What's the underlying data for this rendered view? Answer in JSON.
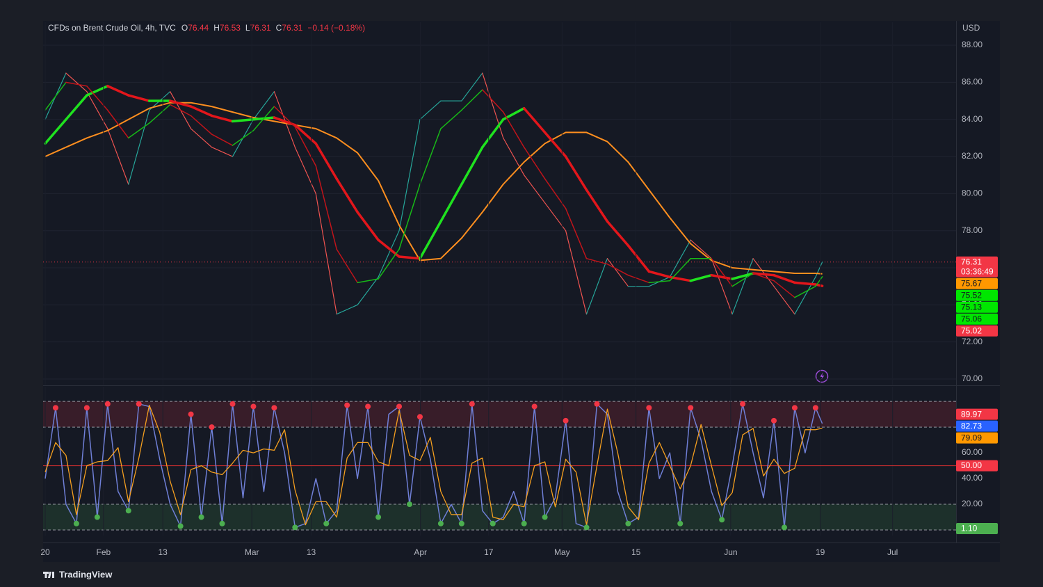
{
  "chart_data": [
    {
      "type": "line",
      "title": "CFDs on Brent Crude Oil, 4h, TVC",
      "ohlc": [
        {
          "label": "O",
          "value": 76.44
        },
        {
          "label": "H",
          "value": 76.53
        },
        {
          "label": "L",
          "value": 76.31
        },
        {
          "label": "C",
          "value": 76.31
        }
      ],
      "change_label": "−0.14 (−0.18%)",
      "header_color": "#f23645",
      "currency": "USD",
      "x": [
        0,
        4,
        8,
        12,
        16,
        20,
        24,
        28,
        32,
        36,
        40,
        44,
        48,
        52,
        56,
        60,
        64,
        68,
        72,
        76,
        80,
        84,
        88,
        92,
        96,
        100,
        104,
        108,
        112,
        116,
        120,
        124,
        128,
        132,
        136,
        140,
        144,
        148,
        149.3
      ],
      "xlim": [
        -0.4,
        175
      ],
      "ylim": [
        69.7,
        89.24
      ],
      "yticks": [
        {
          "value": 70,
          "label": "70.00"
        },
        {
          "value": 72,
          "label": "72.00"
        },
        {
          "value": 74,
          "label": "74.00"
        },
        {
          "value": 76,
          "label": "76.00"
        },
        {
          "value": 78,
          "label": "78.00"
        },
        {
          "value": 80,
          "label": "80.00"
        },
        {
          "value": 82,
          "label": "82.00"
        },
        {
          "value": 84,
          "label": "84.00"
        },
        {
          "value": 86,
          "label": "86.00"
        },
        {
          "value": 88,
          "label": "88.00"
        }
      ],
      "grid": true,
      "series": [
        {
          "up_color": "#26a69a",
          "down_color": "#ef5350",
          "line_width": 1.2,
          "values": [
            84,
            86.5,
            85.5,
            83.5,
            80.5,
            84.5,
            85.5,
            83.5,
            82.5,
            82,
            84,
            85.5,
            82.5,
            80,
            73.5,
            74,
            75.5,
            78,
            84,
            85,
            85,
            86.5,
            83,
            81,
            79.5,
            78,
            73.5,
            76.5,
            75,
            75,
            75.5,
            77.5,
            76.5,
            73.5,
            76.5,
            75,
            73.5,
            75.5,
            76.31
          ]
        },
        {
          "color": "#ff8f1f",
          "line_width": 2,
          "values": [
            82,
            82.5,
            83,
            83.4,
            84,
            84.6,
            84.9,
            84.9,
            84.7,
            84.4,
            84.1,
            83.9,
            83.7,
            83.5,
            83,
            82.2,
            80.7,
            78.3,
            76.4,
            76.5,
            77.6,
            79,
            80.5,
            81.7,
            82.7,
            83.3,
            83.3,
            82.8,
            81.7,
            80.2,
            78.7,
            77.3,
            76.4,
            76,
            75.9,
            75.8,
            75.7,
            75.7,
            75.67
          ]
        },
        {
          "up_color": "#1fe21f",
          "down_color": "#e3161b",
          "line_width": 3.5,
          "values": [
            82.7,
            84,
            85.3,
            85.8,
            85.3,
            85,
            85,
            84.7,
            84.2,
            83.9,
            84,
            84.1,
            83.7,
            82.7,
            80.8,
            79,
            77.5,
            76.6,
            76.5,
            78.5,
            80.5,
            82.5,
            84,
            84.6,
            83.3,
            82,
            80.2,
            78.5,
            77.2,
            75.8,
            75.5,
            75.3,
            75.6,
            75.4,
            75.7,
            75.6,
            75.2,
            75.1,
            75.02
          ]
        },
        {
          "up_color": "#17b817",
          "down_color": "#c0141a",
          "line_width": 1.5,
          "values": [
            84.5,
            86,
            85.8,
            84.5,
            83,
            83.8,
            84.8,
            84.2,
            83.2,
            82.6,
            83.4,
            84.7,
            83.6,
            81.5,
            77,
            75.2,
            75.4,
            77,
            80.5,
            83.5,
            84.5,
            85.6,
            84.4,
            82.5,
            80.8,
            79.2,
            76.5,
            76.2,
            75.6,
            75.2,
            75.3,
            76.5,
            76.5,
            75,
            75.7,
            75.3,
            74.4,
            75,
            75.52
          ]
        }
      ],
      "last_price": 76.31,
      "last_price_color": "#f23645",
      "tags": [
        {
          "value": 76.31,
          "sublabel": "03:36:49",
          "color": "#f23645",
          "text_color": "#ffffff"
        },
        {
          "value": 75.67,
          "color": "#ff9800",
          "text_color": "#131722"
        },
        {
          "value": 75.52,
          "color": "#00e600",
          "text_color": "#131722"
        },
        {
          "value": 75.13,
          "color": "#00e600",
          "text_color": "#131722"
        },
        {
          "value": 75.06,
          "color": "#00e600",
          "text_color": "#131722"
        },
        {
          "value": 75.02,
          "color": "#f23645",
          "text_color": "#ffffff"
        }
      ]
    },
    {
      "type": "line",
      "x": [
        0,
        2,
        4,
        6,
        8,
        10,
        12,
        14,
        16,
        18,
        20,
        22,
        24,
        26,
        28,
        30,
        32,
        34,
        36,
        38,
        40,
        42,
        44,
        46,
        48,
        50,
        52,
        54,
        56,
        58,
        60,
        62,
        64,
        66,
        68,
        70,
        72,
        74,
        76,
        78,
        80,
        82,
        84,
        86,
        88,
        90,
        92,
        94,
        96,
        98,
        100,
        102,
        104,
        106,
        108,
        110,
        112,
        114,
        116,
        118,
        120,
        122,
        124,
        126,
        128,
        130,
        132,
        134,
        136,
        138,
        140,
        142,
        144,
        146,
        148,
        149.3
      ],
      "xlim": [
        -0.4,
        175
      ],
      "xticks": [
        {
          "value": 0,
          "label": "20"
        },
        {
          "value": 11.2,
          "label": "Feb"
        },
        {
          "value": 22.6,
          "label": "13"
        },
        {
          "value": 39.7,
          "label": "Mar"
        },
        {
          "value": 51.1,
          "label": "13"
        },
        {
          "value": 72.1,
          "label": "Apr"
        },
        {
          "value": 85.2,
          "label": "17"
        },
        {
          "value": 99.3,
          "label": "May"
        },
        {
          "value": 113.5,
          "label": "15"
        },
        {
          "value": 131.7,
          "label": "Jun"
        },
        {
          "value": 148.9,
          "label": "19"
        },
        {
          "value": 162.8,
          "label": "Jul"
        }
      ],
      "ylim": [
        -4.3,
        111.4
      ],
      "yticks": [
        {
          "value": 20,
          "label": "20.00"
        },
        {
          "value": 40,
          "label": "40.00"
        },
        {
          "value": 60,
          "label": "60.00"
        }
      ],
      "bands": [
        {
          "range": [
            80,
            100
          ],
          "color": "#f23645"
        },
        {
          "range": [
            0,
            20
          ],
          "color": "#4caf50"
        }
      ],
      "midline": 50,
      "midline_color": "#d32f2f",
      "series": [
        {
          "color": "#6f7fd6",
          "line_width": 1.5,
          "markers": true,
          "values": [
            40,
            95,
            20,
            5,
            95,
            10,
            98,
            30,
            15,
            98,
            96,
            55,
            20,
            3,
            90,
            10,
            80,
            5,
            98,
            25,
            96,
            30,
            95,
            60,
            2,
            5,
            40,
            5,
            15,
            97,
            40,
            96,
            10,
            90,
            96,
            20,
            88,
            55,
            5,
            20,
            5,
            98,
            15,
            5,
            10,
            30,
            5,
            96,
            10,
            25,
            85,
            5,
            2,
            98,
            90,
            30,
            5,
            10,
            95,
            40,
            60,
            5,
            95,
            70,
            30,
            8,
            50,
            98,
            60,
            25,
            85,
            2,
            95,
            60,
            95,
            82.73
          ]
        },
        {
          "color": "#f59f1f",
          "line_width": 1.3,
          "values": [
            45,
            68,
            58,
            12,
            50,
            53,
            54,
            64,
            22,
            56,
            97,
            76,
            38,
            12,
            47,
            50,
            45,
            43,
            52,
            62,
            60,
            63,
            62,
            78,
            31,
            4,
            22,
            22,
            10,
            56,
            68,
            68,
            53,
            50,
            93,
            58,
            54,
            72,
            30,
            12,
            12,
            52,
            56,
            10,
            8,
            20,
            18,
            50,
            53,
            18,
            55,
            45,
            4,
            50,
            94,
            60,
            18,
            8,
            52,
            68,
            50,
            32,
            50,
            82,
            50,
            19,
            29,
            74,
            79,
            42,
            55,
            44,
            48,
            78,
            78,
            79.09
          ]
        }
      ],
      "tags": [
        {
          "value": 89.97,
          "color": "#f23645",
          "text_color": "#ffffff"
        },
        {
          "value": 82.73,
          "color": "#2962ff",
          "text_color": "#ffffff"
        },
        {
          "value": 79.09,
          "color": "#ff9800",
          "text_color": "#131722"
        },
        {
          "value": 50,
          "label": "50.00",
          "color": "#f23645",
          "text_color": "#ffffff"
        },
        {
          "value": 1.1,
          "label": "1.10",
          "color": "#4caf50",
          "text_color": "#ffffff"
        }
      ]
    }
  ],
  "footer": "TradingView"
}
